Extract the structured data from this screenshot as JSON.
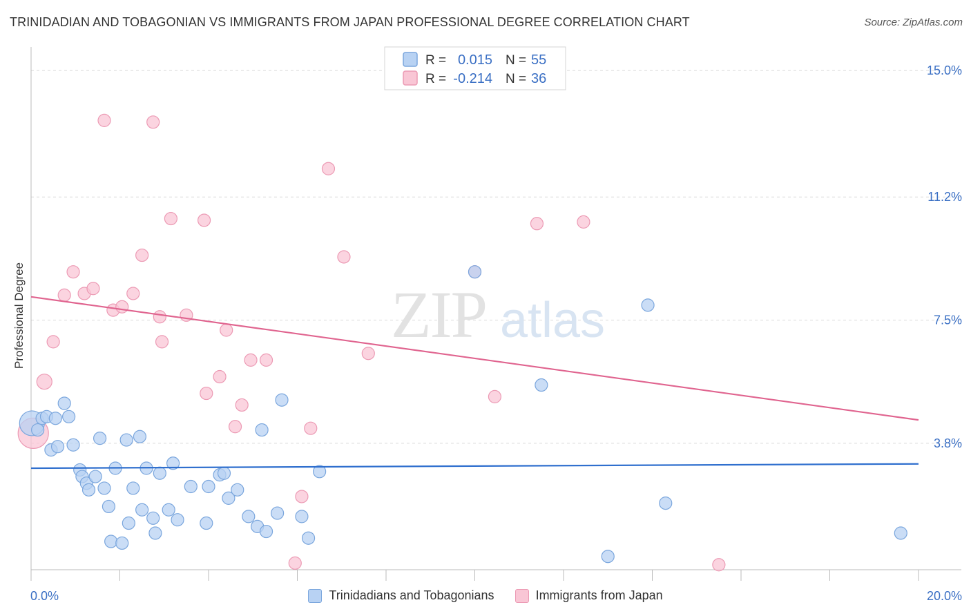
{
  "title": "TRINIDADIAN AND TOBAGONIAN VS IMMIGRANTS FROM JAPAN PROFESSIONAL DEGREE CORRELATION CHART",
  "source": "Source: ZipAtlas.com",
  "watermark": {
    "zip": "ZIP",
    "atlas": "atlas"
  },
  "colors": {
    "blue_fill": "#b8d2f3",
    "blue_stroke": "#7aa6dd",
    "blue_line": "#2f6fce",
    "pink_fill": "#f9c6d5",
    "pink_stroke": "#ec9ab4",
    "pink_line": "#e0648f",
    "tick_label": "#3a6fc4",
    "grid": "#d9d9d9"
  },
  "legend_top": {
    "items": [
      {
        "r_label": "R =",
        "r_value": "0.015",
        "n_label": "N =",
        "n_value": "55",
        "color": "blue"
      },
      {
        "r_label": "R =",
        "r_value": "-0.214",
        "n_label": "N =",
        "n_value": "36",
        "color": "pink"
      }
    ]
  },
  "legend_bottom": {
    "items": [
      {
        "label": "Trinidadians and Tobagonians",
        "color": "blue"
      },
      {
        "label": "Immigrants from Japan",
        "color": "pink"
      }
    ]
  },
  "chart_data": {
    "type": "scatter",
    "ylabel": "Professional Degree",
    "xlabel": "",
    "xlim": [
      0,
      20
    ],
    "ylim": [
      0,
      15.5
    ],
    "x_tick_labels": [
      {
        "value": 0,
        "label": "0.0%"
      },
      {
        "value": 20,
        "label": "20.0%"
      }
    ],
    "y_tick_labels": [
      {
        "value": 3.8,
        "label": "3.8%"
      },
      {
        "value": 7.5,
        "label": "7.5%"
      },
      {
        "value": 11.2,
        "label": "11.2%"
      },
      {
        "value": 15.0,
        "label": "15.0%"
      }
    ],
    "grid": true,
    "legend_position": "top-center",
    "series": [
      {
        "name": "Trinidadians and Tobagonians",
        "color": "blue",
        "trend": {
          "x": [
            0,
            20
          ],
          "y": [
            3.05,
            3.18
          ]
        },
        "points": [
          [
            0.02,
            4.4,
            18
          ],
          [
            0.15,
            4.2,
            9
          ],
          [
            0.25,
            4.55,
            9
          ],
          [
            0.35,
            4.6,
            9
          ],
          [
            0.45,
            3.6,
            9
          ],
          [
            0.55,
            4.55,
            9
          ],
          [
            0.6,
            3.7,
            9
          ],
          [
            0.75,
            5.0,
            9
          ],
          [
            0.85,
            4.6,
            9
          ],
          [
            0.95,
            3.75,
            9
          ],
          [
            1.1,
            3.0,
            9
          ],
          [
            1.15,
            2.8,
            9
          ],
          [
            1.25,
            2.6,
            9
          ],
          [
            1.3,
            2.4,
            9
          ],
          [
            1.45,
            2.8,
            9
          ],
          [
            1.55,
            3.95,
            9
          ],
          [
            1.65,
            2.45,
            9
          ],
          [
            1.75,
            1.9,
            9
          ],
          [
            1.8,
            0.85,
            9
          ],
          [
            1.9,
            3.05,
            9
          ],
          [
            2.05,
            0.8,
            9
          ],
          [
            2.15,
            3.9,
            9
          ],
          [
            2.2,
            1.4,
            9
          ],
          [
            2.3,
            2.45,
            9
          ],
          [
            2.45,
            4.0,
            9
          ],
          [
            2.5,
            1.8,
            9
          ],
          [
            2.6,
            3.05,
            9
          ],
          [
            2.75,
            1.55,
            9
          ],
          [
            2.8,
            1.1,
            9
          ],
          [
            2.9,
            2.9,
            9
          ],
          [
            3.1,
            1.8,
            9
          ],
          [
            3.2,
            3.2,
            9
          ],
          [
            3.3,
            1.5,
            9
          ],
          [
            3.6,
            2.5,
            9
          ],
          [
            3.95,
            1.4,
            9
          ],
          [
            4.0,
            2.5,
            9
          ],
          [
            4.25,
            2.85,
            9
          ],
          [
            4.35,
            2.9,
            9
          ],
          [
            4.45,
            2.15,
            9
          ],
          [
            4.65,
            2.4,
            9
          ],
          [
            4.9,
            1.6,
            9
          ],
          [
            5.1,
            1.3,
            9
          ],
          [
            5.2,
            4.2,
            9
          ],
          [
            5.3,
            1.15,
            9
          ],
          [
            5.55,
            1.7,
            9
          ],
          [
            5.65,
            5.1,
            9
          ],
          [
            6.1,
            1.6,
            9
          ],
          [
            6.25,
            0.95,
            9
          ],
          [
            6.5,
            2.95,
            9
          ],
          [
            10.0,
            8.95,
            9
          ],
          [
            11.5,
            5.55,
            9
          ],
          [
            13.0,
            0.4,
            9
          ],
          [
            13.9,
            7.95,
            9
          ],
          [
            14.3,
            2.0,
            9
          ],
          [
            19.6,
            1.1,
            9
          ]
        ]
      },
      {
        "name": "Immigrants from Japan",
        "color": "pink",
        "trend": {
          "x": [
            0,
            20
          ],
          "y": [
            8.2,
            4.5
          ]
        },
        "points": [
          [
            0.05,
            4.1,
            22
          ],
          [
            0.3,
            5.65,
            11
          ],
          [
            0.5,
            6.85,
            9
          ],
          [
            0.75,
            8.25,
            9
          ],
          [
            0.95,
            8.95,
            9
          ],
          [
            1.2,
            8.3,
            9
          ],
          [
            1.4,
            8.45,
            9
          ],
          [
            1.65,
            13.5,
            9
          ],
          [
            1.85,
            7.8,
            9
          ],
          [
            2.05,
            7.9,
            9
          ],
          [
            2.3,
            8.3,
            9
          ],
          [
            2.5,
            9.45,
            9
          ],
          [
            2.75,
            13.45,
            9
          ],
          [
            2.9,
            7.6,
            9
          ],
          [
            2.95,
            6.85,
            9
          ],
          [
            3.15,
            10.55,
            9
          ],
          [
            3.5,
            7.65,
            9
          ],
          [
            3.9,
            10.5,
            9
          ],
          [
            3.95,
            5.3,
            9
          ],
          [
            4.25,
            5.8,
            9
          ],
          [
            4.4,
            7.2,
            9
          ],
          [
            4.6,
            4.3,
            9
          ],
          [
            4.75,
            4.95,
            9
          ],
          [
            4.95,
            6.3,
            9
          ],
          [
            5.3,
            6.3,
            9
          ],
          [
            5.95,
            0.2,
            9
          ],
          [
            6.1,
            2.2,
            9
          ],
          [
            6.3,
            4.25,
            9
          ],
          [
            6.7,
            12.05,
            9
          ],
          [
            7.05,
            9.4,
            9
          ],
          [
            7.6,
            6.5,
            9
          ],
          [
            10.0,
            8.95,
            9
          ],
          [
            10.45,
            5.2,
            9
          ],
          [
            11.4,
            10.4,
            9
          ],
          [
            12.45,
            10.45,
            9
          ],
          [
            15.5,
            0.15,
            9
          ]
        ]
      }
    ]
  }
}
